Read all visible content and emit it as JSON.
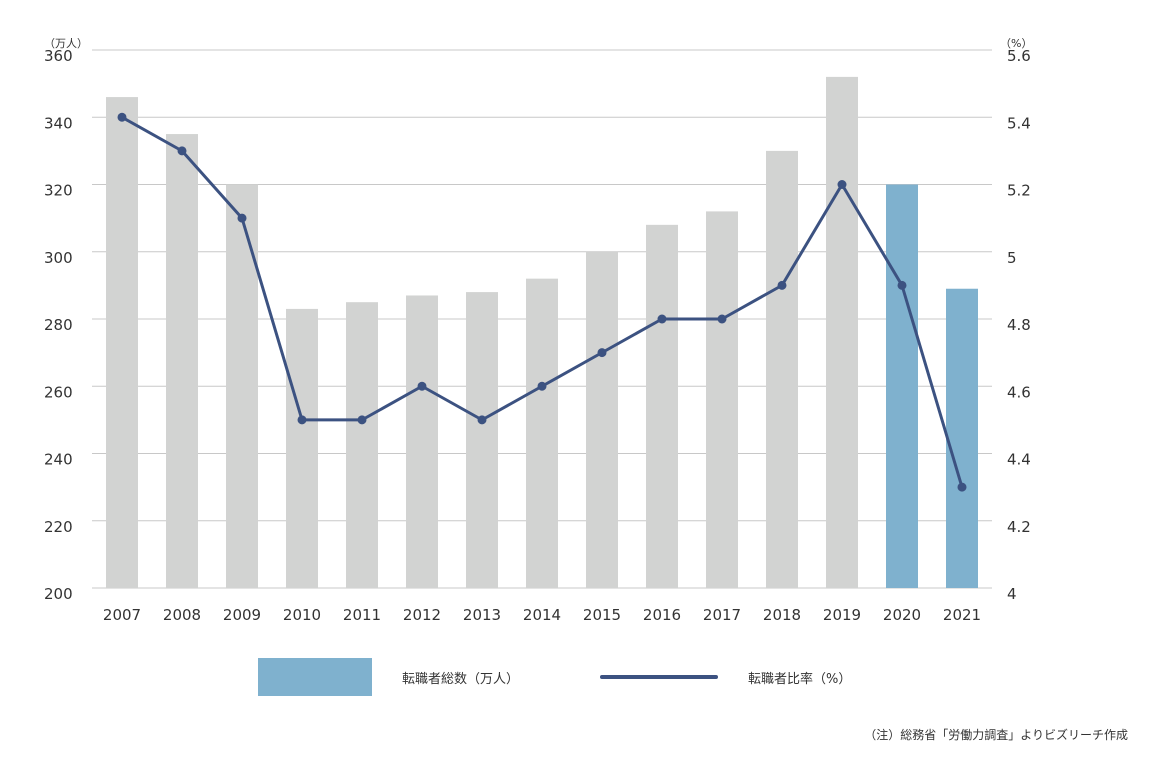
{
  "chart_data": {
    "type": "bar",
    "categories": [
      "2007",
      "2008",
      "2009",
      "2010",
      "2011",
      "2012",
      "2013",
      "2014",
      "2015",
      "2016",
      "2017",
      "2018",
      "2019",
      "2020",
      "2021"
    ],
    "series": [
      {
        "name": "転職者総数（万人）",
        "type": "bar",
        "axis": "left",
        "values": [
          346,
          335,
          320,
          283,
          285,
          287,
          288,
          292,
          300,
          308,
          312,
          330,
          352,
          320,
          289
        ],
        "colors": [
          "#d2d3d2",
          "#d2d3d2",
          "#d2d3d2",
          "#d2d3d2",
          "#d2d3d2",
          "#d2d3d2",
          "#d2d3d2",
          "#d2d3d2",
          "#d2d3d2",
          "#d2d3d2",
          "#d2d3d2",
          "#d2d3d2",
          "#d2d3d2",
          "#7fb1ce",
          "#7fb1ce"
        ]
      },
      {
        "name": "転職者比率（%）",
        "type": "line",
        "axis": "right",
        "values": [
          5.4,
          5.3,
          5.1,
          4.5,
          4.5,
          4.6,
          4.5,
          4.6,
          4.7,
          4.8,
          4.8,
          4.9,
          5.2,
          4.9,
          4.3
        ],
        "color": "#3c5281"
      }
    ],
    "y_left": {
      "unit_label": "（万人）",
      "ylim": [
        200,
        360
      ],
      "ticks": [
        "200",
        "220",
        "240",
        "260",
        "280",
        "300",
        "320",
        "340",
        "360"
      ]
    },
    "y_right": {
      "unit_label": "（%）",
      "ylim": [
        4,
        5.6
      ],
      "ticks": [
        "4",
        "4.2",
        "4.4",
        "4.6",
        "4.8",
        "5",
        "5.2",
        "5.4",
        "5.6"
      ]
    },
    "grid": true,
    "legend_position": "bottom"
  },
  "legend": {
    "bar_label": "転職者総数（万人）",
    "line_label": "転職者比率（%）"
  },
  "note": "（注）総務省「労働力調査」よりビズリーチ作成",
  "colors": {
    "bar_gray": "#d2d3d2",
    "bar_blue": "#7fb1ce",
    "line": "#3c5281",
    "grid": "#c8c8c8"
  }
}
